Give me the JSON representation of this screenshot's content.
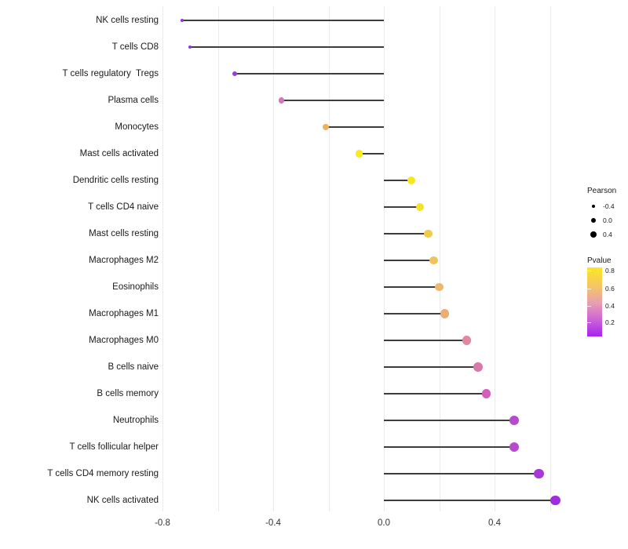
{
  "chart_data": {
    "type": "scatter",
    "variant": "lollipop",
    "title": "",
    "xlabel": "",
    "ylabel": "",
    "xlim": [
      -0.9,
      0.72
    ],
    "grid": true,
    "baseline_value": 0,
    "x_ticks": [
      {
        "label": "-0.8",
        "value": -0.8
      },
      {
        "label": "-0.4",
        "value": -0.4
      },
      {
        "label": "0.0",
        "value": 0.0
      },
      {
        "label": "0.4",
        "value": 0.4
      }
    ],
    "gridline_values": [
      -0.8,
      -0.6,
      -0.4,
      -0.2,
      0.0,
      0.2,
      0.4,
      0.6
    ],
    "points": [
      {
        "category": "NK cells resting",
        "pearson": -0.73,
        "color": "#9732D6"
      },
      {
        "category": "T cells CD8",
        "pearson": -0.7,
        "color": "#9732D6"
      },
      {
        "category": "T cells regulatory  Tregs",
        "pearson": -0.54,
        "color": "#9D3BD3"
      },
      {
        "category": "Plasma cells",
        "pearson": -0.37,
        "color": "#D277BB"
      },
      {
        "category": "Monocytes",
        "pearson": -0.21,
        "color": "#EEB25C"
      },
      {
        "category": "Mast cells activated",
        "pearson": -0.09,
        "color": "#F6EB1C"
      },
      {
        "category": "Dendritic cells resting",
        "pearson": 0.1,
        "color": "#F4E81E"
      },
      {
        "category": "T cells CD4 naive",
        "pearson": 0.13,
        "color": "#F3E326"
      },
      {
        "category": "Mast cells resting",
        "pearson": 0.16,
        "color": "#F1CC4C"
      },
      {
        "category": "Macrophages M2",
        "pearson": 0.18,
        "color": "#F0C45B"
      },
      {
        "category": "Eosinophils",
        "pearson": 0.2,
        "color": "#EDB76E"
      },
      {
        "category": "Macrophages M1",
        "pearson": 0.22,
        "color": "#EAAE74"
      },
      {
        "category": "Macrophages M0",
        "pearson": 0.3,
        "color": "#E2879E"
      },
      {
        "category": "B cells naive",
        "pearson": 0.34,
        "color": "#DB78AB"
      },
      {
        "category": "B cells memory",
        "pearson": 0.37,
        "color": "#D160BC"
      },
      {
        "category": "Neutrophils",
        "pearson": 0.47,
        "color": "#B44CCB"
      },
      {
        "category": "T cells follicular helper",
        "pearson": 0.47,
        "color": "#B44CCB"
      },
      {
        "category": "T cells CD4 memory resting",
        "pearson": 0.56,
        "color": "#A637D9"
      },
      {
        "category": "NK cells activated",
        "pearson": 0.62,
        "color": "#A12CDE"
      }
    ],
    "legend": {
      "position": "right",
      "size_legend": {
        "title": "Pearson",
        "dot_color": "#000000",
        "entries": [
          {
            "label": "-0.4",
            "value": -0.4
          },
          {
            "label": "0.0",
            "value": 0.0
          },
          {
            "label": "0.4",
            "value": 0.4
          }
        ]
      },
      "color_legend": {
        "title": "Pvalue",
        "tick_labels": [
          "0.8",
          "0.6",
          "0.4",
          "0.2"
        ],
        "gradient_top_to_bottom": [
          "#FBE723",
          "#F5C566",
          "#E89DB4",
          "#CC63D6",
          "#A623F0"
        ]
      }
    }
  }
}
